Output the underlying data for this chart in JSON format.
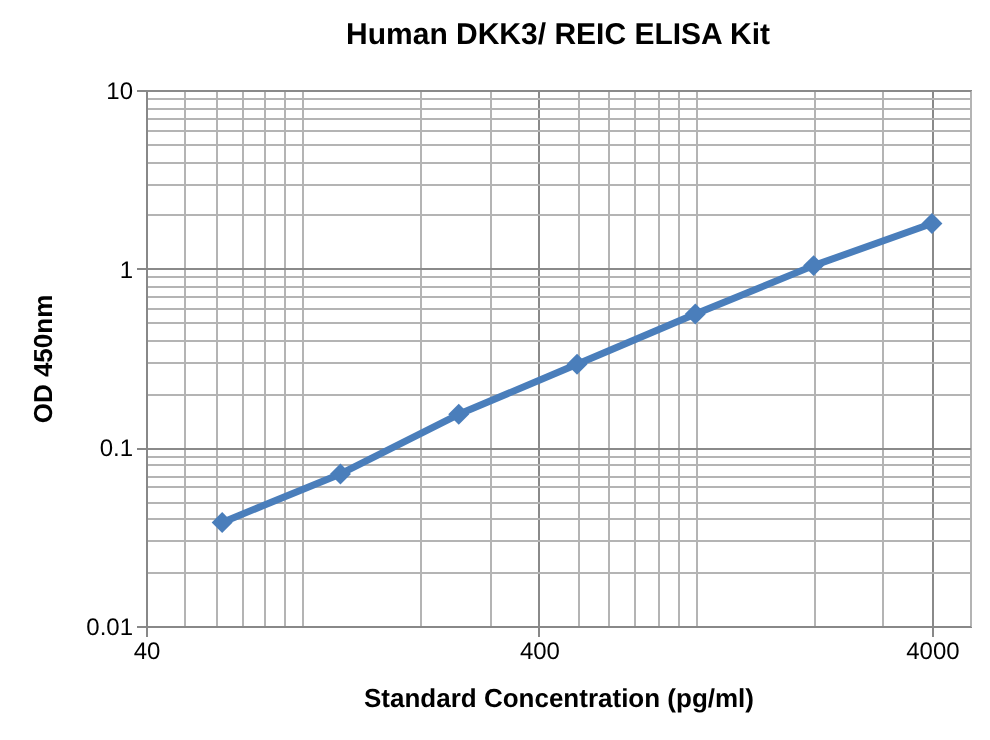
{
  "chart_data": {
    "type": "line",
    "title": "Human  DKK3/ REIC ELISA Kit",
    "xlabel": "Standard Concentration (pg/ml)",
    "ylabel": "OD 450nm",
    "x": [
      62.5,
      125,
      250,
      500,
      1000,
      2000,
      4000
    ],
    "series": [
      {
        "color": "#4a7ebb",
        "values": [
          0.038,
          0.071,
          0.153,
          0.292,
          0.557,
          1.04,
          1.79
        ]
      }
    ],
    "log": "xy",
    "xlim": [
      40,
      5000
    ],
    "xticks": [
      40,
      400,
      4000
    ],
    "ylim": [
      0.01,
      10
    ],
    "yticks": [
      0.01,
      0.1,
      1,
      10
    ],
    "grid": true,
    "marker": "diamond",
    "line_style": "solid"
  }
}
